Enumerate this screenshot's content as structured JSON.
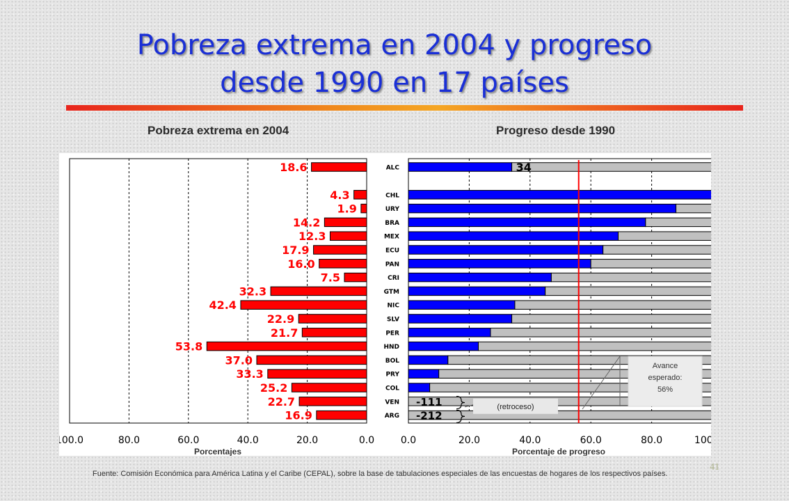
{
  "title_line1": "Pobreza extrema en 2004 y progreso",
  "title_line2": "desde 1990 en 17 países",
  "left_heading": "Pobreza extrema en 2004",
  "right_heading": "Progreso desde 1990",
  "source": "Fuente: Comisión Económica para América Latina y el Caribe (CEPAL), sobre la base de tabulaciones especiales de las encuestas de hogares de los respectivos países.",
  "page_number": "41",
  "colors": {
    "title": "#1a2fd6",
    "left_bars": "#ff0000",
    "progress_bars": "#0000ff",
    "remaining_bars": "#c0c0c0",
    "target_line": "#ff0000"
  },
  "chart_data": [
    {
      "type": "bar",
      "orientation": "horizontal",
      "title": "Pobreza extrema en 2004",
      "xlabel": "Porcentajes",
      "x_reversed": true,
      "xlim": [
        0,
        100
      ],
      "xticks": [
        "100.0",
        "80.0",
        "60.0",
        "40.0",
        "20.0",
        "0.0"
      ],
      "grid": "vertical dashed",
      "categories": [
        "ALC",
        "CHL",
        "URY",
        "BRA",
        "MEX",
        "ECU",
        "PAN",
        "CRI",
        "GTM",
        "NIC",
        "SLV",
        "PER",
        "HND",
        "BOL",
        "PRY",
        "COL",
        "VEN",
        "ARG"
      ],
      "values": [
        18.6,
        4.3,
        1.9,
        14.2,
        12.3,
        17.9,
        16.0,
        7.5,
        32.3,
        42.4,
        22.9,
        21.7,
        53.8,
        37.0,
        33.3,
        25.2,
        22.7,
        16.9
      ],
      "labels": [
        "18.6",
        "4.3",
        "1.9",
        "14.2",
        "12.3",
        "17.9",
        "16.0",
        "7.5",
        "32.3",
        "42.4",
        "22.9",
        "21.7",
        "53.8",
        "37.0",
        "33.3",
        "25.2",
        "22.7",
        "16.9"
      ]
    },
    {
      "type": "bar",
      "orientation": "horizontal",
      "stacked": true,
      "title": "Progreso desde 1990",
      "xlabel": "Porcentaje de progreso",
      "xlim": [
        0,
        100
      ],
      "xticks": [
        "0.0",
        "20.0",
        "40.0",
        "60.0",
        "80.0",
        "100.0"
      ],
      "grid": "vertical dashed",
      "categories": [
        "ALC",
        "CHL",
        "URY",
        "BRA",
        "MEX",
        "ECU",
        "PAN",
        "CRI",
        "GTM",
        "NIC",
        "SLV",
        "PER",
        "HND",
        "BOL",
        "PRY",
        "COL",
        "VEN",
        "ARG"
      ],
      "series": [
        {
          "name": "progress",
          "values": [
            34,
            100,
            88,
            78,
            69,
            64,
            60,
            47,
            45,
            35,
            34,
            27,
            23,
            13,
            10,
            7,
            0,
            0
          ]
        },
        {
          "name": "remaining",
          "values": [
            66,
            0,
            12,
            22,
            31,
            36,
            40,
            53,
            55,
            65,
            66,
            73,
            77,
            87,
            90,
            93,
            100,
            100
          ]
        }
      ],
      "value_labels": [
        {
          "category": "ALC",
          "text": "34"
        },
        {
          "category": "VEN",
          "text": "-111"
        },
        {
          "category": "ARG",
          "text": "-212"
        }
      ],
      "reference_line": {
        "x": 56
      },
      "annotations": [
        {
          "text": "(retroceso)"
        },
        {
          "text_lines": [
            "Avance",
            "esperado:",
            "56%"
          ]
        }
      ]
    }
  ]
}
